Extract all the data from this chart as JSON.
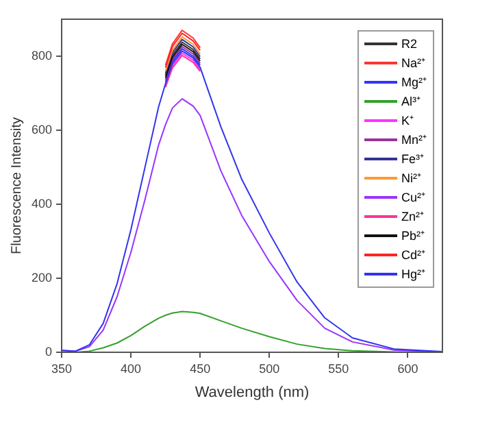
{
  "chart_data": {
    "type": "line",
    "xlabel": "Wavelength (nm)",
    "ylabel": "Fluorescence Intensity",
    "x": [
      350,
      360,
      370,
      380,
      390,
      400,
      410,
      420,
      425,
      430,
      437,
      445,
      450,
      465,
      480,
      500,
      520,
      540,
      560,
      590,
      625
    ],
    "xlim": [
      350,
      625
    ],
    "xticks": [
      350,
      400,
      450,
      500,
      550,
      600
    ],
    "ylim": [
      0,
      900
    ],
    "yticks": [
      0,
      200,
      400,
      600,
      800
    ],
    "grid": false,
    "legend": "top right",
    "marker": "none",
    "line_style": "solid",
    "series": [
      {
        "name": "R2",
        "color": "#333333",
        "values": [
          null,
          null,
          null,
          null,
          null,
          null,
          null,
          null,
          748,
          803,
          838,
          818,
          793,
          null,
          null,
          null,
          null,
          null,
          null,
          null,
          null
        ]
      },
      {
        "name": "Na²⁺",
        "color": "#ff3333",
        "values": [
          null,
          null,
          null,
          null,
          null,
          null,
          null,
          null,
          776,
          833,
          870,
          849,
          823,
          null,
          null,
          null,
          null,
          null,
          null,
          null,
          null
        ]
      },
      {
        "name": "Mg²⁺",
        "color": "#3333ff",
        "values": [
          null,
          null,
          null,
          null,
          null,
          null,
          null,
          null,
          731,
          786,
          820,
          800,
          776,
          null,
          null,
          null,
          null,
          null,
          null,
          null,
          null
        ]
      },
      {
        "name": "Al³⁺",
        "color": "#33a02c",
        "values": [
          0,
          0,
          3,
          12,
          25,
          45,
          70,
          92,
          100,
          106,
          110,
          108,
          105,
          85,
          65,
          42,
          22,
          10,
          4,
          1,
          0
        ]
      },
      {
        "name": "K⁺",
        "color": "#ff33ff",
        "values": [
          null,
          null,
          null,
          null,
          null,
          null,
          null,
          null,
          721,
          774,
          808,
          789,
          764,
          null,
          null,
          null,
          null,
          null,
          null,
          null,
          null
        ]
      },
      {
        "name": "Mn²⁺",
        "color": "#993399",
        "values": [
          null,
          null,
          null,
          null,
          null,
          null,
          null,
          null,
          737,
          791,
          826,
          806,
          781,
          null,
          null,
          null,
          null,
          null,
          null,
          null,
          null
        ]
      },
      {
        "name": "Fe³⁺",
        "color": "#333399",
        "values": [
          null,
          null,
          null,
          null,
          null,
          null,
          null,
          null,
          754,
          810,
          845,
          825,
          799,
          null,
          null,
          null,
          null,
          null,
          null,
          null,
          null
        ]
      },
      {
        "name": "Ni²⁺",
        "color": "#ff9933",
        "values": [
          null,
          null,
          null,
          null,
          null,
          null,
          null,
          null,
          760,
          816,
          852,
          832,
          806,
          null,
          null,
          null,
          null,
          null,
          null,
          null,
          null
        ]
      },
      {
        "name": "Cu²⁺",
        "color": "#9933ff",
        "values": [
          5,
          3,
          15,
          60,
          150,
          270,
          410,
          560,
          615,
          660,
          685,
          665,
          640,
          490,
          370,
          245,
          140,
          65,
          28,
          6,
          1
        ]
      },
      {
        "name": "Zn²⁺",
        "color": "#ff3399",
        "values": [
          null,
          null,
          null,
          null,
          null,
          null,
          null,
          null,
          716,
          768,
          802,
          783,
          759,
          null,
          null,
          null,
          null,
          null,
          null,
          null,
          null
        ]
      },
      {
        "name": "Pb²⁺",
        "color": "#111111",
        "values": [
          null,
          null,
          null,
          null,
          null,
          null,
          null,
          null,
          742,
          797,
          832,
          812,
          787,
          null,
          null,
          null,
          null,
          null,
          null,
          null,
          null
        ]
      },
      {
        "name": "Cd²⁺",
        "color": "#ff2222",
        "values": [
          null,
          null,
          null,
          null,
          null,
          null,
          null,
          null,
          769,
          826,
          862,
          841,
          816,
          null,
          null,
          null,
          null,
          null,
          null,
          null,
          null
        ]
      },
      {
        "name": "Hg²⁺",
        "color": "#3333ee",
        "values": [
          5,
          3,
          20,
          78,
          185,
          331,
          497,
          663,
          726,
          780,
          814,
          795,
          770,
          609,
          468,
          322,
          190,
          93,
          39,
          9,
          2
        ]
      }
    ]
  }
}
